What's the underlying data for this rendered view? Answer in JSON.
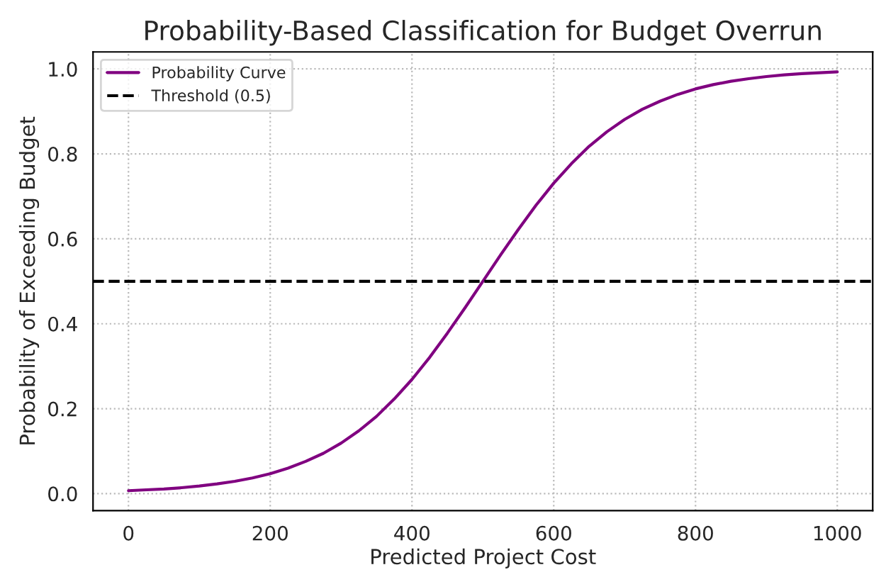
{
  "chart_data": {
    "type": "line",
    "title": "Probability-Based Classification for Budget Overrun",
    "xlabel": "Predicted Project Cost",
    "ylabel": "Probability of Exceeding Budget",
    "series": [
      {
        "name": "Probability Curve",
        "color": "#800080",
        "x": [
          0,
          25,
          50,
          75,
          100,
          125,
          150,
          175,
          200,
          225,
          250,
          275,
          300,
          325,
          350,
          375,
          400,
          425,
          450,
          475,
          500,
          525,
          550,
          575,
          600,
          625,
          650,
          675,
          700,
          725,
          750,
          775,
          800,
          825,
          850,
          875,
          900,
          925,
          950,
          975,
          1000
        ],
        "values": [
          0.007,
          0.009,
          0.011,
          0.014,
          0.018,
          0.023,
          0.029,
          0.037,
          0.047,
          0.06,
          0.076,
          0.095,
          0.119,
          0.148,
          0.182,
          0.223,
          0.269,
          0.321,
          0.378,
          0.438,
          0.5,
          0.562,
          0.622,
          0.679,
          0.731,
          0.777,
          0.818,
          0.852,
          0.881,
          0.905,
          0.924,
          0.94,
          0.953,
          0.963,
          0.971,
          0.977,
          0.982,
          0.986,
          0.989,
          0.991,
          0.993
        ]
      }
    ],
    "ref_lines": [
      {
        "axis": "y",
        "value": 0.5,
        "label": "Threshold (0.5)",
        "color": "#000000",
        "line_style": "dashed"
      }
    ],
    "xlim": [
      -50,
      1050
    ],
    "ylim": [
      -0.04,
      1.04
    ],
    "xticks": [
      0,
      200,
      400,
      600,
      800,
      1000
    ],
    "yticks": [
      {
        "value": 0,
        "label": "0.0"
      },
      {
        "value": 0.2,
        "label": "0.2"
      },
      {
        "value": 0.4,
        "label": "0.4"
      },
      {
        "value": 0.6,
        "label": "0.6"
      },
      {
        "value": 0.8,
        "label": "0.8"
      },
      {
        "value": 1,
        "label": "1.0"
      }
    ],
    "grid": true,
    "legend": "top left",
    "line_style": "solid",
    "marker": "none"
  }
}
